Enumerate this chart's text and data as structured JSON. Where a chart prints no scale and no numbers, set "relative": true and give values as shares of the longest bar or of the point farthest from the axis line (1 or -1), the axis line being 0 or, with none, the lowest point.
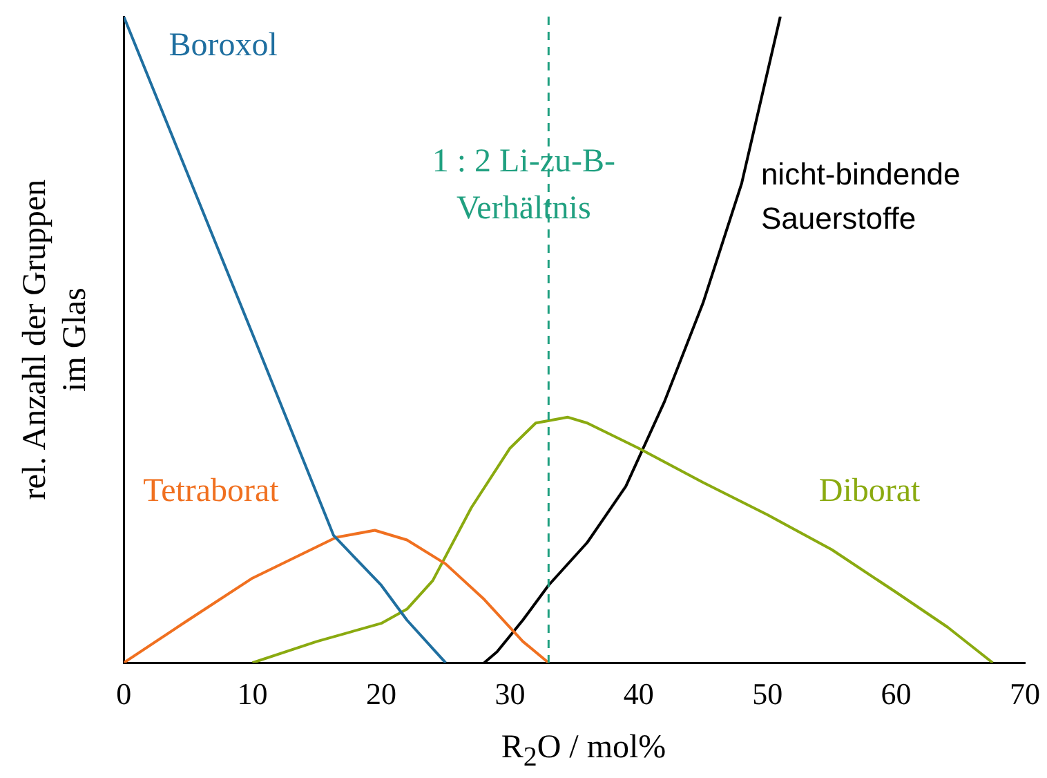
{
  "chart_data": {
    "type": "line",
    "relative": true,
    "xlabel": "R$_{2}$O / mol%",
    "ylabel": "rel. Anzahl der Gruppen\nim Glas",
    "xlim": [
      0,
      70
    ],
    "xticks": [
      0,
      10,
      20,
      30,
      40,
      50,
      60,
      70
    ],
    "grid": false,
    "legend": false,
    "marker": "none",
    "line_style": "solid",
    "series": [
      {
        "name": "Boroxol",
        "color": "#1f6fa0",
        "x": [
          0,
          10,
          16.3,
          20,
          22,
          25
        ],
        "values": [
          1,
          0.509,
          0.197,
          0.12,
          0.066,
          0
        ]
      },
      {
        "name": "Tetraborat",
        "color": "#f07020",
        "x": [
          0,
          5,
          10,
          16.5,
          19.5,
          22,
          25,
          28,
          31,
          33
        ],
        "values": [
          0,
          0.066,
          0.131,
          0.194,
          0.205,
          0.19,
          0.153,
          0.098,
          0.033,
          0
        ]
      },
      {
        "name": "Diborat",
        "color": "#8aaa10",
        "x": [
          10,
          15,
          20,
          22,
          24,
          27,
          30,
          32,
          34.5,
          36,
          40,
          45,
          50,
          55,
          60,
          64,
          67.5
        ],
        "values": [
          0,
          0.033,
          0.061,
          0.083,
          0.127,
          0.24,
          0.332,
          0.371,
          0.38,
          0.371,
          0.332,
          0.279,
          0.229,
          0.175,
          0.109,
          0.055,
          0
        ]
      },
      {
        "name": "nicht-bindende\nSauerstoffe",
        "color": "#000000",
        "x": [
          28,
          29,
          31,
          33,
          36,
          39,
          42,
          45,
          48,
          51
        ],
        "values": [
          0,
          0.017,
          0.066,
          0.12,
          0.186,
          0.273,
          0.404,
          0.557,
          0.742,
          1
        ]
      }
    ],
    "annotations": [
      "1 : 2 Li-zu-B-\nVerhältnis"
    ],
    "ref_lines": [
      {
        "axis": "x",
        "value": 33,
        "color": "#20a080",
        "line_style": "dashed"
      }
    ]
  }
}
